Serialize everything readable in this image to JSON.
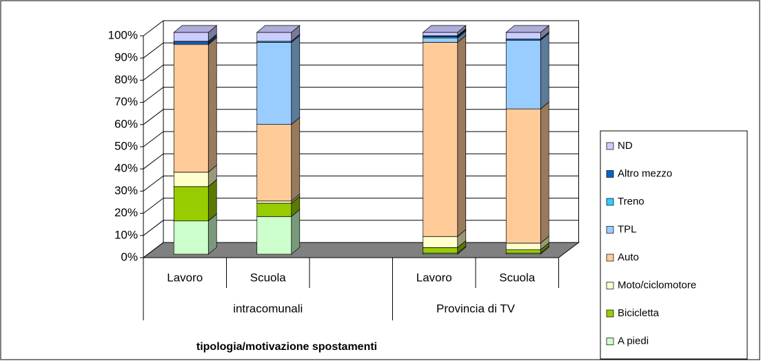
{
  "chart_data": {
    "type": "bar3d_stacked",
    "x_label": "tipologia/motivazione spostamenti",
    "groups": [
      {
        "label": "intracomunali",
        "categories": [
          "Lavoro",
          "Scuola",
          null
        ]
      },
      {
        "label": "Provincia di TV",
        "categories": [
          "Lavoro",
          "Scuola"
        ]
      }
    ],
    "series": [
      {
        "name": "A piedi",
        "color": "#ccffcc",
        "values": [
          15,
          17,
          null,
          0.5,
          0.5
        ]
      },
      {
        "name": "Bicicletta",
        "color": "#99cc00",
        "values": [
          15.5,
          6,
          null,
          2.5,
          1.5
        ]
      },
      {
        "name": "Moto/ciclomotore",
        "color": "#ffffcc",
        "values": [
          6.5,
          1,
          null,
          5,
          3
        ]
      },
      {
        "name": "Auto",
        "color": "#ffcc99",
        "values": [
          57.5,
          34.5,
          null,
          87.5,
          60.5
        ]
      },
      {
        "name": "TPL",
        "color": "#99ccff",
        "values": [
          0.5,
          37,
          null,
          2,
          31
        ]
      },
      {
        "name": "Treno",
        "color": "#33ccff",
        "values": [
          0,
          0.5,
          null,
          0.5,
          0
        ]
      },
      {
        "name": "Altro mezzo",
        "color": "#0066cc",
        "values": [
          1,
          0,
          null,
          0.5,
          0.5
        ]
      },
      {
        "name": "ND",
        "color": "#ccccff",
        "values": [
          4,
          4,
          null,
          1.5,
          3
        ]
      }
    ],
    "ylim": [
      0,
      100
    ],
    "yticks": [
      {
        "value": 0,
        "label": "0%"
      },
      {
        "value": 10,
        "label": "10%"
      },
      {
        "value": 20,
        "label": "20%"
      },
      {
        "value": 30,
        "label": "30%"
      },
      {
        "value": 40,
        "label": "40%"
      },
      {
        "value": 50,
        "label": "50%"
      },
      {
        "value": 60,
        "label": "60%"
      },
      {
        "value": 70,
        "label": "70%"
      },
      {
        "value": 80,
        "label": "80%"
      },
      {
        "value": 90,
        "label": "90%"
      },
      {
        "value": 100,
        "label": "100%"
      }
    ],
    "grid": true,
    "legend": "right"
  }
}
